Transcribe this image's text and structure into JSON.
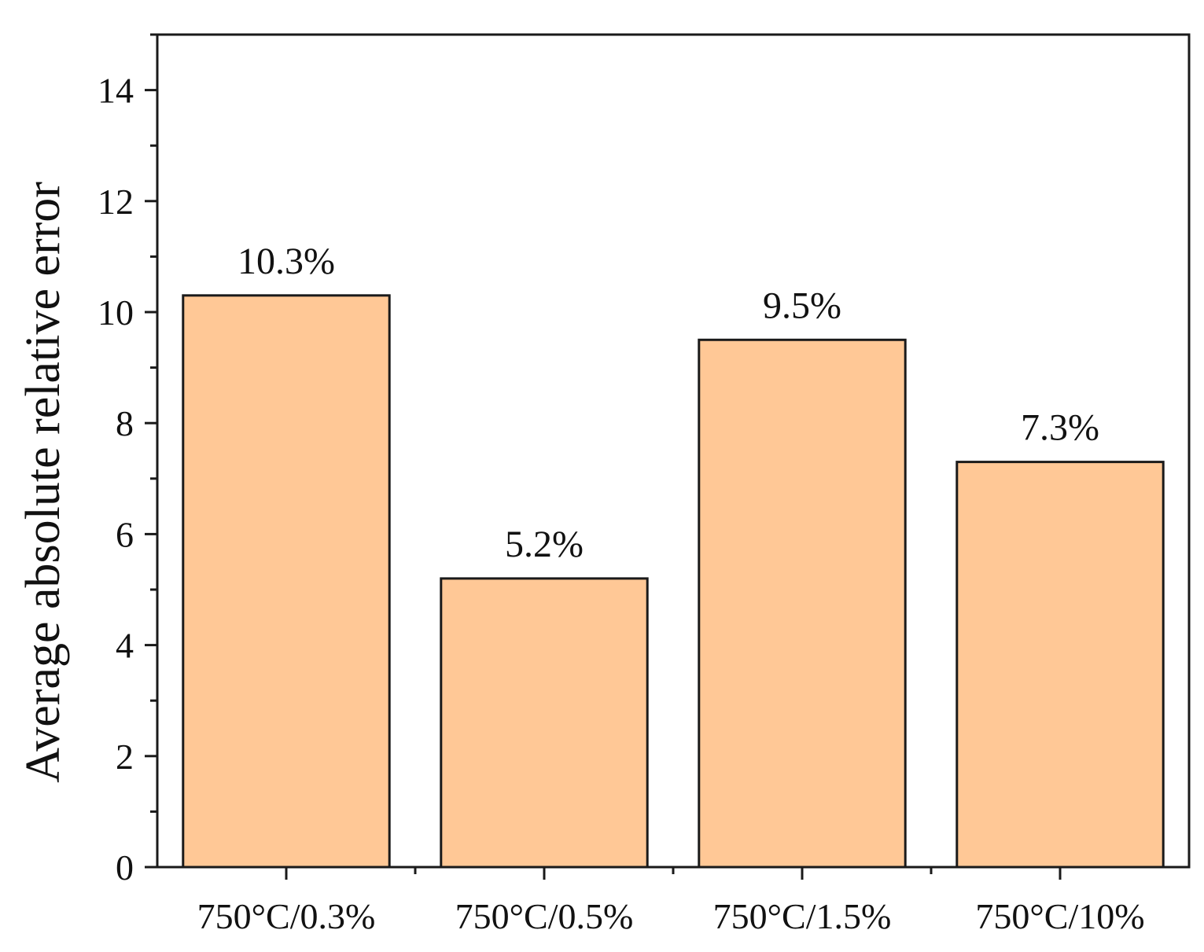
{
  "chart_data": {
    "type": "bar",
    "title": "",
    "xlabel": "",
    "ylabel": "Average absolute relative error",
    "categories": [
      "750°C/0.3%",
      "750°C/0.5%",
      "750°C/1.5%",
      "750°C/10%"
    ],
    "values": [
      10.3,
      5.2,
      9.5,
      7.3
    ],
    "data_labels": [
      "10.3%",
      "5.2%",
      "9.5%",
      "7.3%"
    ],
    "ylim": [
      0,
      15
    ],
    "yticks": [
      0,
      2,
      4,
      6,
      8,
      10,
      12,
      14
    ],
    "grid": false,
    "legend": "none",
    "colors": {
      "bar_fill": "#FFC896",
      "bar_stroke": "#1a1a1a",
      "axis": "#1a1a1a"
    }
  }
}
